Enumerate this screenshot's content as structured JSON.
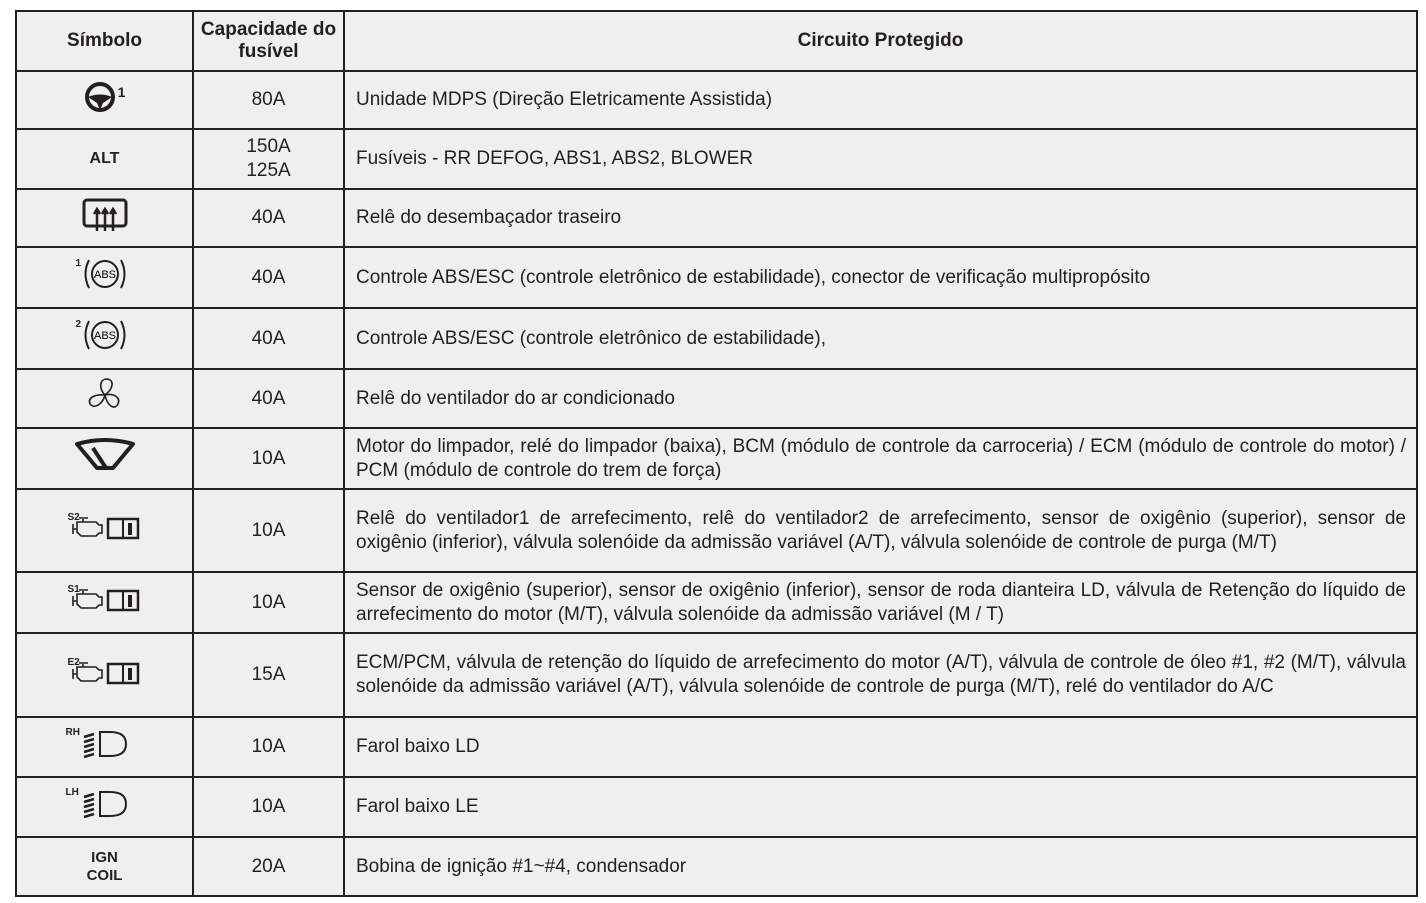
{
  "headers": {
    "symbol": "Símbolo",
    "capacity": "Capacidade do fusível",
    "circuit": "Circuito Protegido"
  },
  "rows": [
    {
      "icon": "steering-wheel-icon",
      "sup": "1",
      "capacity": "80A",
      "circuit": "Unidade MDPS (Direção Eletricamente Assistida)"
    },
    {
      "label": "ALT",
      "capacity": "150A",
      "capacity2": "125A",
      "circuit": "Fusíveis - RR DEFOG, ABS1, ABS2, BLOWER"
    },
    {
      "icon": "rear-defrost-icon",
      "capacity": "40A",
      "circuit": "Relê do desembaçador traseiro"
    },
    {
      "icon": "abs-icon",
      "sup": "1",
      "icon_text": "ABS",
      "capacity": "40A",
      "circuit": "Controle ABS/ESC (controle eletrônico de estabilidade), conector de verificação multipropósito"
    },
    {
      "icon": "abs-icon",
      "sup": "2",
      "icon_text": "ABS",
      "capacity": "40A",
      "circuit": "Controle ABS/ESC (controle eletrônico de estabilidade),"
    },
    {
      "icon": "fan-icon",
      "capacity": "40A",
      "circuit": "Relê do ventilador do ar condicionado"
    },
    {
      "icon": "wiper-icon",
      "capacity": "10A",
      "circuit": "Motor do limpador, relé do limpador (baixa), BCM (módulo de controle da carroceria) / ECM (módulo de controle do motor) / PCM (módulo de controle do trem de força)"
    },
    {
      "icon": "engine-manual-icon",
      "sup": "S2",
      "capacity": "10A",
      "circuit": "Relê do ventilador1 de arrefecimento, relê do ventilador2 de arrefecimento, sensor de oxigênio (superior), sensor de oxigênio (inferior), válvula solenóide da admissão variável (A/T), válvula solenóide de controle de purga (M/T)"
    },
    {
      "icon": "engine-manual-icon",
      "sup": "S1",
      "capacity": "10A",
      "circuit": "Sensor de oxigênio (superior), sensor de oxigênio (inferior), sensor de roda dianteira LD, válvula de Retenção do líquido de arrefecimento do motor (M/T), válvula solenóide da admissão variável (M / T)"
    },
    {
      "icon": "engine-manual-icon",
      "sup": "E2",
      "capacity": "15A",
      "circuit": "ECM/PCM, válvula de retenção do líquido de arrefecimento do motor (A/T), válvula de controle de óleo #1, #2 (M/T), válvula solenóide da admissão variável (A/T), válvula solenóide de controle de purga (M/T), relé do ventilador do A/C"
    },
    {
      "icon": "low-beam-icon",
      "sup": "RH",
      "capacity": "10A",
      "circuit": "Farol baixo LD"
    },
    {
      "icon": "low-beam-icon",
      "sup": "LH",
      "capacity": "10A",
      "circuit": "Farol baixo LE"
    },
    {
      "label": "IGN",
      "label2": "COIL",
      "capacity": "20A",
      "circuit": "Bobina de ignição #1~#4, condensador"
    }
  ]
}
